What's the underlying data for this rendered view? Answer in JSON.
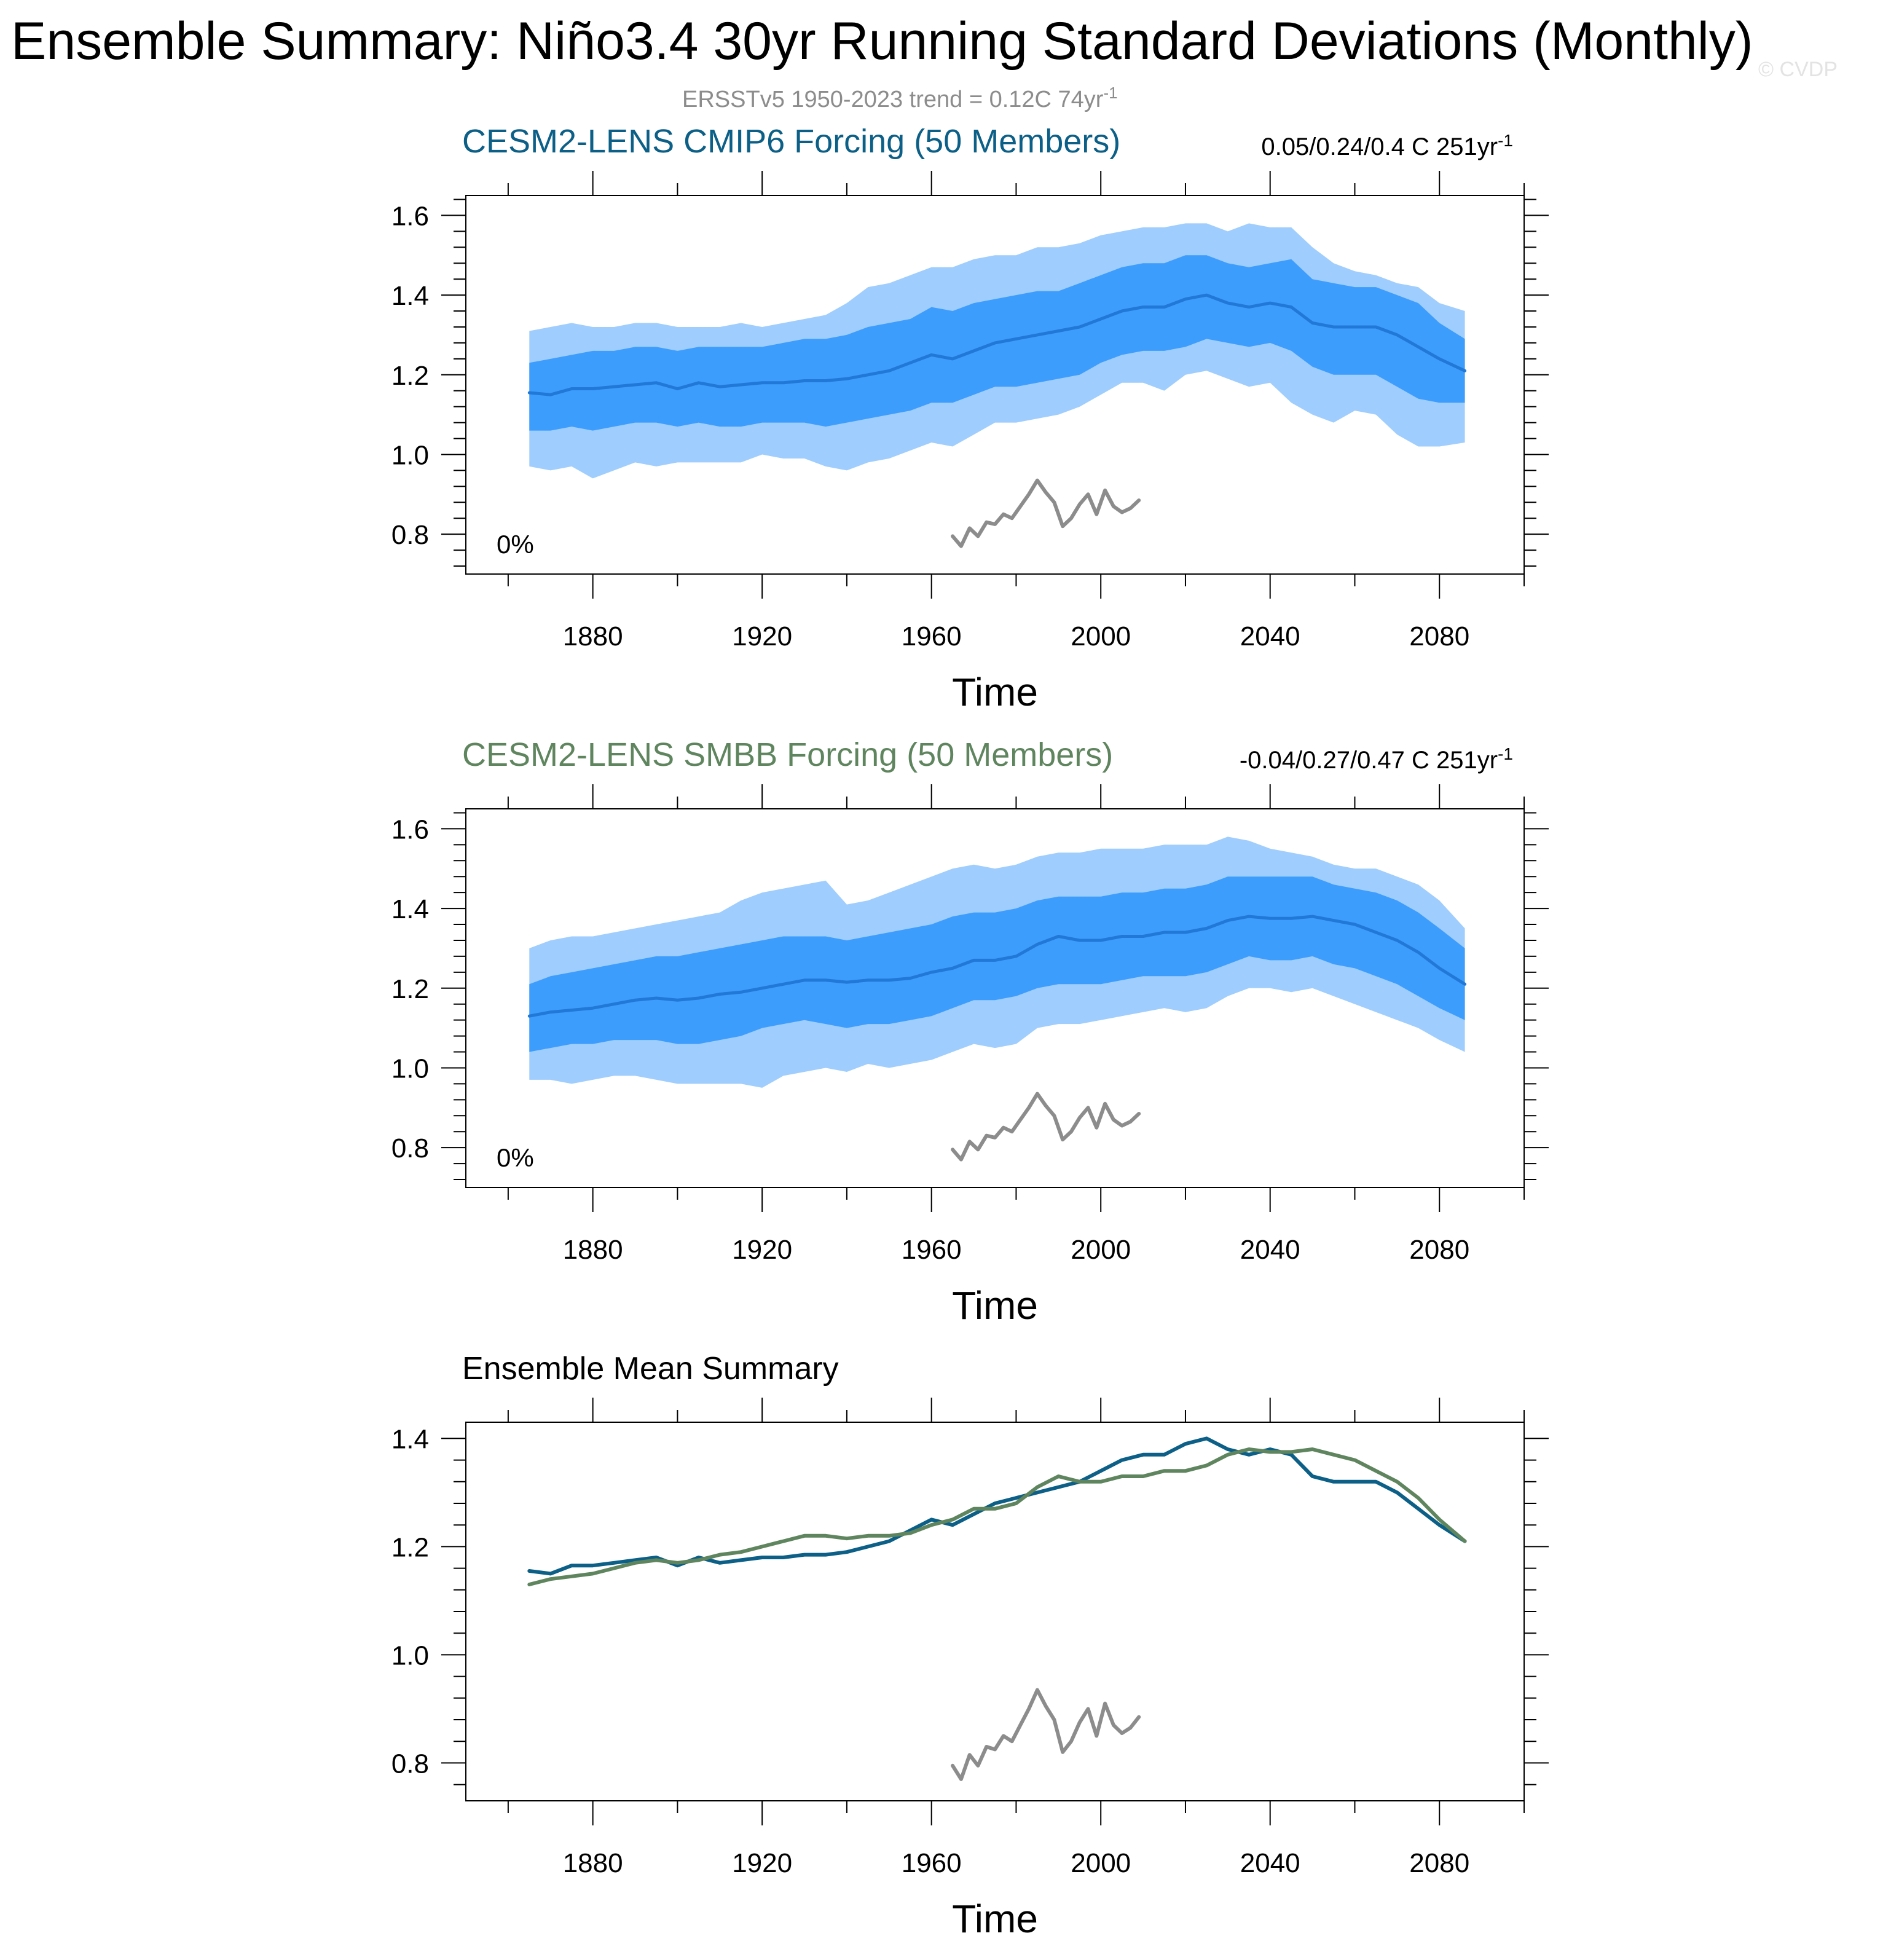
{
  "page": {
    "title": "Ensemble Summary: Niño3.4 30yr Running Standard Deviations (Monthly)",
    "subtitle": "ERSSTv5 1950-2023 trend = 0.12C 74yr",
    "subtitle_sup": "-1",
    "watermark": "© CVDP"
  },
  "colors": {
    "outer_band": "#9fcdfd",
    "inner_band": "#3d9dfc",
    "mean_line": "#2178d6",
    "obs_line": "#8c8c8c",
    "cmip6": "#0c5f86",
    "smbb": "#5f855f",
    "axis": "#000000"
  },
  "chart_data": [
    {
      "id": "cmip6",
      "type": "area",
      "title": "CESM2-LENS CMIP6 Forcing (50 Members)",
      "title_color": "#0c5f86",
      "stats": "0.05/0.24/0.4 C 251yr",
      "stats_sup": "-1",
      "percent_label": "0%",
      "xlabel": "Time",
      "ylabel": "",
      "xlim": [
        1850,
        2100
      ],
      "ylim": [
        0.7,
        1.65
      ],
      "x_ticks": [
        1880,
        1920,
        1960,
        2000,
        2040,
        2080
      ],
      "y_ticks": [
        0.8,
        1.0,
        1.2,
        1.4,
        1.6
      ],
      "x_tick_labels": [
        "1880",
        "1920",
        "1960",
        "2000",
        "2040",
        "2080"
      ],
      "y_tick_labels": [
        "0.8",
        "1.0",
        "1.2",
        "1.4",
        "1.6"
      ],
      "x": [
        1865,
        1870,
        1875,
        1880,
        1885,
        1890,
        1895,
        1900,
        1905,
        1910,
        1915,
        1920,
        1925,
        1930,
        1935,
        1940,
        1945,
        1950,
        1955,
        1960,
        1965,
        1970,
        1975,
        1980,
        1985,
        1990,
        1995,
        2000,
        2005,
        2010,
        2015,
        2020,
        2025,
        2030,
        2035,
        2040,
        2045,
        2050,
        2055,
        2060,
        2065,
        2070,
        2075,
        2080,
        2086
      ],
      "series": [
        {
          "name": "ensemble_mean",
          "values": [
            1.155,
            1.15,
            1.165,
            1.165,
            1.17,
            1.175,
            1.18,
            1.165,
            1.18,
            1.17,
            1.175,
            1.18,
            1.18,
            1.185,
            1.185,
            1.19,
            1.2,
            1.21,
            1.23,
            1.25,
            1.24,
            1.26,
            1.28,
            1.29,
            1.3,
            1.31,
            1.32,
            1.34,
            1.36,
            1.37,
            1.37,
            1.39,
            1.4,
            1.38,
            1.37,
            1.38,
            1.37,
            1.33,
            1.32,
            1.32,
            1.32,
            1.3,
            1.27,
            1.24,
            1.21
          ]
        },
        {
          "name": "p10",
          "values": [
            1.06,
            1.06,
            1.07,
            1.06,
            1.07,
            1.08,
            1.08,
            1.07,
            1.08,
            1.07,
            1.07,
            1.08,
            1.08,
            1.08,
            1.07,
            1.08,
            1.09,
            1.1,
            1.11,
            1.13,
            1.13,
            1.15,
            1.17,
            1.17,
            1.18,
            1.19,
            1.2,
            1.23,
            1.25,
            1.26,
            1.26,
            1.27,
            1.29,
            1.28,
            1.27,
            1.28,
            1.26,
            1.22,
            1.2,
            1.2,
            1.2,
            1.17,
            1.14,
            1.13,
            1.13
          ]
        },
        {
          "name": "p90",
          "values": [
            1.23,
            1.24,
            1.25,
            1.26,
            1.26,
            1.27,
            1.27,
            1.26,
            1.27,
            1.27,
            1.27,
            1.27,
            1.28,
            1.29,
            1.29,
            1.3,
            1.32,
            1.33,
            1.34,
            1.37,
            1.36,
            1.38,
            1.39,
            1.4,
            1.41,
            1.41,
            1.43,
            1.45,
            1.47,
            1.48,
            1.48,
            1.5,
            1.5,
            1.48,
            1.47,
            1.48,
            1.49,
            1.44,
            1.43,
            1.42,
            1.42,
            1.4,
            1.38,
            1.33,
            1.29
          ]
        },
        {
          "name": "min",
          "values": [
            0.97,
            0.96,
            0.97,
            0.94,
            0.96,
            0.98,
            0.97,
            0.98,
            0.98,
            0.98,
            0.98,
            1.0,
            0.99,
            0.99,
            0.97,
            0.96,
            0.98,
            0.99,
            1.01,
            1.03,
            1.02,
            1.05,
            1.08,
            1.08,
            1.09,
            1.1,
            1.12,
            1.15,
            1.18,
            1.18,
            1.16,
            1.2,
            1.21,
            1.19,
            1.17,
            1.18,
            1.13,
            1.1,
            1.08,
            1.11,
            1.1,
            1.05,
            1.02,
            1.02,
            1.03
          ]
        },
        {
          "name": "max",
          "values": [
            1.31,
            1.32,
            1.33,
            1.32,
            1.32,
            1.33,
            1.33,
            1.32,
            1.32,
            1.32,
            1.33,
            1.32,
            1.33,
            1.34,
            1.35,
            1.38,
            1.42,
            1.43,
            1.45,
            1.47,
            1.47,
            1.49,
            1.5,
            1.5,
            1.52,
            1.52,
            1.53,
            1.55,
            1.56,
            1.57,
            1.57,
            1.58,
            1.58,
            1.56,
            1.58,
            1.57,
            1.57,
            1.52,
            1.48,
            1.46,
            1.45,
            1.43,
            1.42,
            1.38,
            1.36
          ]
        }
      ],
      "observations": {
        "name": "ERSSTv5",
        "x": [
          1965,
          1967,
          1969,
          1971,
          1973,
          1975,
          1977,
          1979,
          1981,
          1983,
          1985,
          1987,
          1989,
          1991,
          1993,
          1995,
          1997,
          1999,
          2001,
          2003,
          2005,
          2007,
          2009
        ],
        "values": [
          0.795,
          0.77,
          0.815,
          0.795,
          0.83,
          0.825,
          0.85,
          0.84,
          0.87,
          0.9,
          0.935,
          0.905,
          0.88,
          0.82,
          0.84,
          0.875,
          0.9,
          0.85,
          0.91,
          0.87,
          0.855,
          0.865,
          0.885
        ]
      }
    },
    {
      "id": "smbb",
      "type": "area",
      "title": "CESM2-LENS SMBB Forcing (50 Members)",
      "title_color": "#5f855f",
      "stats": "-0.04/0.27/0.47 C 251yr",
      "stats_sup": "-1",
      "percent_label": "0%",
      "xlabel": "Time",
      "ylabel": "",
      "xlim": [
        1850,
        2100
      ],
      "ylim": [
        0.7,
        1.65
      ],
      "x_ticks": [
        1880,
        1920,
        1960,
        2000,
        2040,
        2080
      ],
      "y_ticks": [
        0.8,
        1.0,
        1.2,
        1.4,
        1.6
      ],
      "x_tick_labels": [
        "1880",
        "1920",
        "1960",
        "2000",
        "2040",
        "2080"
      ],
      "y_tick_labels": [
        "0.8",
        "1.0",
        "1.2",
        "1.4",
        "1.6"
      ],
      "x": [
        1865,
        1870,
        1875,
        1880,
        1885,
        1890,
        1895,
        1900,
        1905,
        1910,
        1915,
        1920,
        1925,
        1930,
        1935,
        1940,
        1945,
        1950,
        1955,
        1960,
        1965,
        1970,
        1975,
        1980,
        1985,
        1990,
        1995,
        2000,
        2005,
        2010,
        2015,
        2020,
        2025,
        2030,
        2035,
        2040,
        2045,
        2050,
        2055,
        2060,
        2065,
        2070,
        2075,
        2080,
        2086
      ],
      "series": [
        {
          "name": "ensemble_mean",
          "values": [
            1.13,
            1.14,
            1.145,
            1.15,
            1.16,
            1.17,
            1.175,
            1.17,
            1.175,
            1.185,
            1.19,
            1.2,
            1.21,
            1.22,
            1.22,
            1.215,
            1.22,
            1.22,
            1.225,
            1.24,
            1.25,
            1.27,
            1.27,
            1.28,
            1.31,
            1.33,
            1.32,
            1.32,
            1.33,
            1.33,
            1.34,
            1.34,
            1.35,
            1.37,
            1.38,
            1.375,
            1.375,
            1.38,
            1.37,
            1.36,
            1.34,
            1.32,
            1.29,
            1.25,
            1.21
          ]
        },
        {
          "name": "p10",
          "values": [
            1.04,
            1.05,
            1.06,
            1.06,
            1.07,
            1.07,
            1.07,
            1.06,
            1.06,
            1.07,
            1.08,
            1.1,
            1.11,
            1.12,
            1.11,
            1.1,
            1.11,
            1.11,
            1.12,
            1.13,
            1.15,
            1.17,
            1.17,
            1.18,
            1.2,
            1.21,
            1.21,
            1.21,
            1.22,
            1.23,
            1.23,
            1.23,
            1.24,
            1.26,
            1.28,
            1.27,
            1.27,
            1.28,
            1.26,
            1.25,
            1.23,
            1.21,
            1.18,
            1.15,
            1.12
          ]
        },
        {
          "name": "p90",
          "values": [
            1.21,
            1.23,
            1.24,
            1.25,
            1.26,
            1.27,
            1.28,
            1.28,
            1.29,
            1.3,
            1.31,
            1.32,
            1.33,
            1.33,
            1.33,
            1.32,
            1.33,
            1.34,
            1.35,
            1.36,
            1.38,
            1.39,
            1.39,
            1.4,
            1.42,
            1.43,
            1.43,
            1.43,
            1.44,
            1.44,
            1.45,
            1.45,
            1.46,
            1.48,
            1.48,
            1.48,
            1.48,
            1.48,
            1.46,
            1.45,
            1.44,
            1.42,
            1.39,
            1.35,
            1.3
          ]
        },
        {
          "name": "min",
          "values": [
            0.97,
            0.97,
            0.96,
            0.97,
            0.98,
            0.98,
            0.97,
            0.96,
            0.96,
            0.96,
            0.96,
            0.95,
            0.98,
            0.99,
            1.0,
            0.99,
            1.01,
            1.0,
            1.01,
            1.02,
            1.04,
            1.06,
            1.05,
            1.06,
            1.1,
            1.11,
            1.11,
            1.12,
            1.13,
            1.14,
            1.15,
            1.14,
            1.15,
            1.18,
            1.2,
            1.2,
            1.19,
            1.2,
            1.18,
            1.16,
            1.14,
            1.12,
            1.1,
            1.07,
            1.04
          ]
        },
        {
          "name": "max",
          "values": [
            1.3,
            1.32,
            1.33,
            1.33,
            1.34,
            1.35,
            1.36,
            1.37,
            1.38,
            1.39,
            1.42,
            1.44,
            1.45,
            1.46,
            1.47,
            1.41,
            1.42,
            1.44,
            1.46,
            1.48,
            1.5,
            1.51,
            1.5,
            1.51,
            1.53,
            1.54,
            1.54,
            1.55,
            1.55,
            1.55,
            1.56,
            1.56,
            1.56,
            1.58,
            1.57,
            1.55,
            1.54,
            1.53,
            1.51,
            1.5,
            1.5,
            1.48,
            1.46,
            1.42,
            1.35
          ]
        }
      ],
      "observations": {
        "name": "ERSSTv5",
        "x": [
          1965,
          1967,
          1969,
          1971,
          1973,
          1975,
          1977,
          1979,
          1981,
          1983,
          1985,
          1987,
          1989,
          1991,
          1993,
          1995,
          1997,
          1999,
          2001,
          2003,
          2005,
          2007,
          2009
        ],
        "values": [
          0.795,
          0.77,
          0.815,
          0.795,
          0.83,
          0.825,
          0.85,
          0.84,
          0.87,
          0.9,
          0.935,
          0.905,
          0.88,
          0.82,
          0.84,
          0.875,
          0.9,
          0.85,
          0.91,
          0.87,
          0.855,
          0.865,
          0.885
        ]
      }
    },
    {
      "id": "mean",
      "type": "line",
      "title": "Ensemble Mean Summary",
      "title_color": "#000000",
      "xlabel": "Time",
      "ylabel": "",
      "xlim": [
        1850,
        2100
      ],
      "ylim": [
        0.73,
        1.43
      ],
      "x_ticks": [
        1880,
        1920,
        1960,
        2000,
        2040,
        2080
      ],
      "y_ticks": [
        0.8,
        1.0,
        1.2,
        1.4
      ],
      "x_tick_labels": [
        "1880",
        "1920",
        "1960",
        "2000",
        "2040",
        "2080"
      ],
      "y_tick_labels": [
        "0.8",
        "1.0",
        "1.2",
        "1.4"
      ],
      "x": [
        1865,
        1870,
        1875,
        1880,
        1885,
        1890,
        1895,
        1900,
        1905,
        1910,
        1915,
        1920,
        1925,
        1930,
        1935,
        1940,
        1945,
        1950,
        1955,
        1960,
        1965,
        1970,
        1975,
        1980,
        1985,
        1990,
        1995,
        2000,
        2005,
        2010,
        2015,
        2020,
        2025,
        2030,
        2035,
        2040,
        2045,
        2050,
        2055,
        2060,
        2065,
        2070,
        2075,
        2080,
        2086
      ],
      "series": [
        {
          "name": "CESM2-LENS CMIP6",
          "color": "#0c5f86",
          "values": [
            1.155,
            1.15,
            1.165,
            1.165,
            1.17,
            1.175,
            1.18,
            1.165,
            1.18,
            1.17,
            1.175,
            1.18,
            1.18,
            1.185,
            1.185,
            1.19,
            1.2,
            1.21,
            1.23,
            1.25,
            1.24,
            1.26,
            1.28,
            1.29,
            1.3,
            1.31,
            1.32,
            1.34,
            1.36,
            1.37,
            1.37,
            1.39,
            1.4,
            1.38,
            1.37,
            1.38,
            1.37,
            1.33,
            1.32,
            1.32,
            1.32,
            1.3,
            1.27,
            1.24,
            1.21
          ]
        },
        {
          "name": "CESM2-LENS SMBB",
          "color": "#5f855f",
          "values": [
            1.13,
            1.14,
            1.145,
            1.15,
            1.16,
            1.17,
            1.175,
            1.17,
            1.175,
            1.185,
            1.19,
            1.2,
            1.21,
            1.22,
            1.22,
            1.215,
            1.22,
            1.22,
            1.225,
            1.24,
            1.25,
            1.27,
            1.27,
            1.28,
            1.31,
            1.33,
            1.32,
            1.32,
            1.33,
            1.33,
            1.34,
            1.34,
            1.35,
            1.37,
            1.38,
            1.375,
            1.375,
            1.38,
            1.37,
            1.36,
            1.34,
            1.32,
            1.29,
            1.25,
            1.21
          ]
        }
      ],
      "observations": {
        "name": "ERSSTv5",
        "x": [
          1965,
          1967,
          1969,
          1971,
          1973,
          1975,
          1977,
          1979,
          1981,
          1983,
          1985,
          1987,
          1989,
          1991,
          1993,
          1995,
          1997,
          1999,
          2001,
          2003,
          2005,
          2007,
          2009
        ],
        "values": [
          0.795,
          0.77,
          0.815,
          0.795,
          0.83,
          0.825,
          0.85,
          0.84,
          0.87,
          0.9,
          0.935,
          0.905,
          0.88,
          0.82,
          0.84,
          0.875,
          0.9,
          0.85,
          0.91,
          0.87,
          0.855,
          0.865,
          0.885
        ]
      }
    }
  ]
}
